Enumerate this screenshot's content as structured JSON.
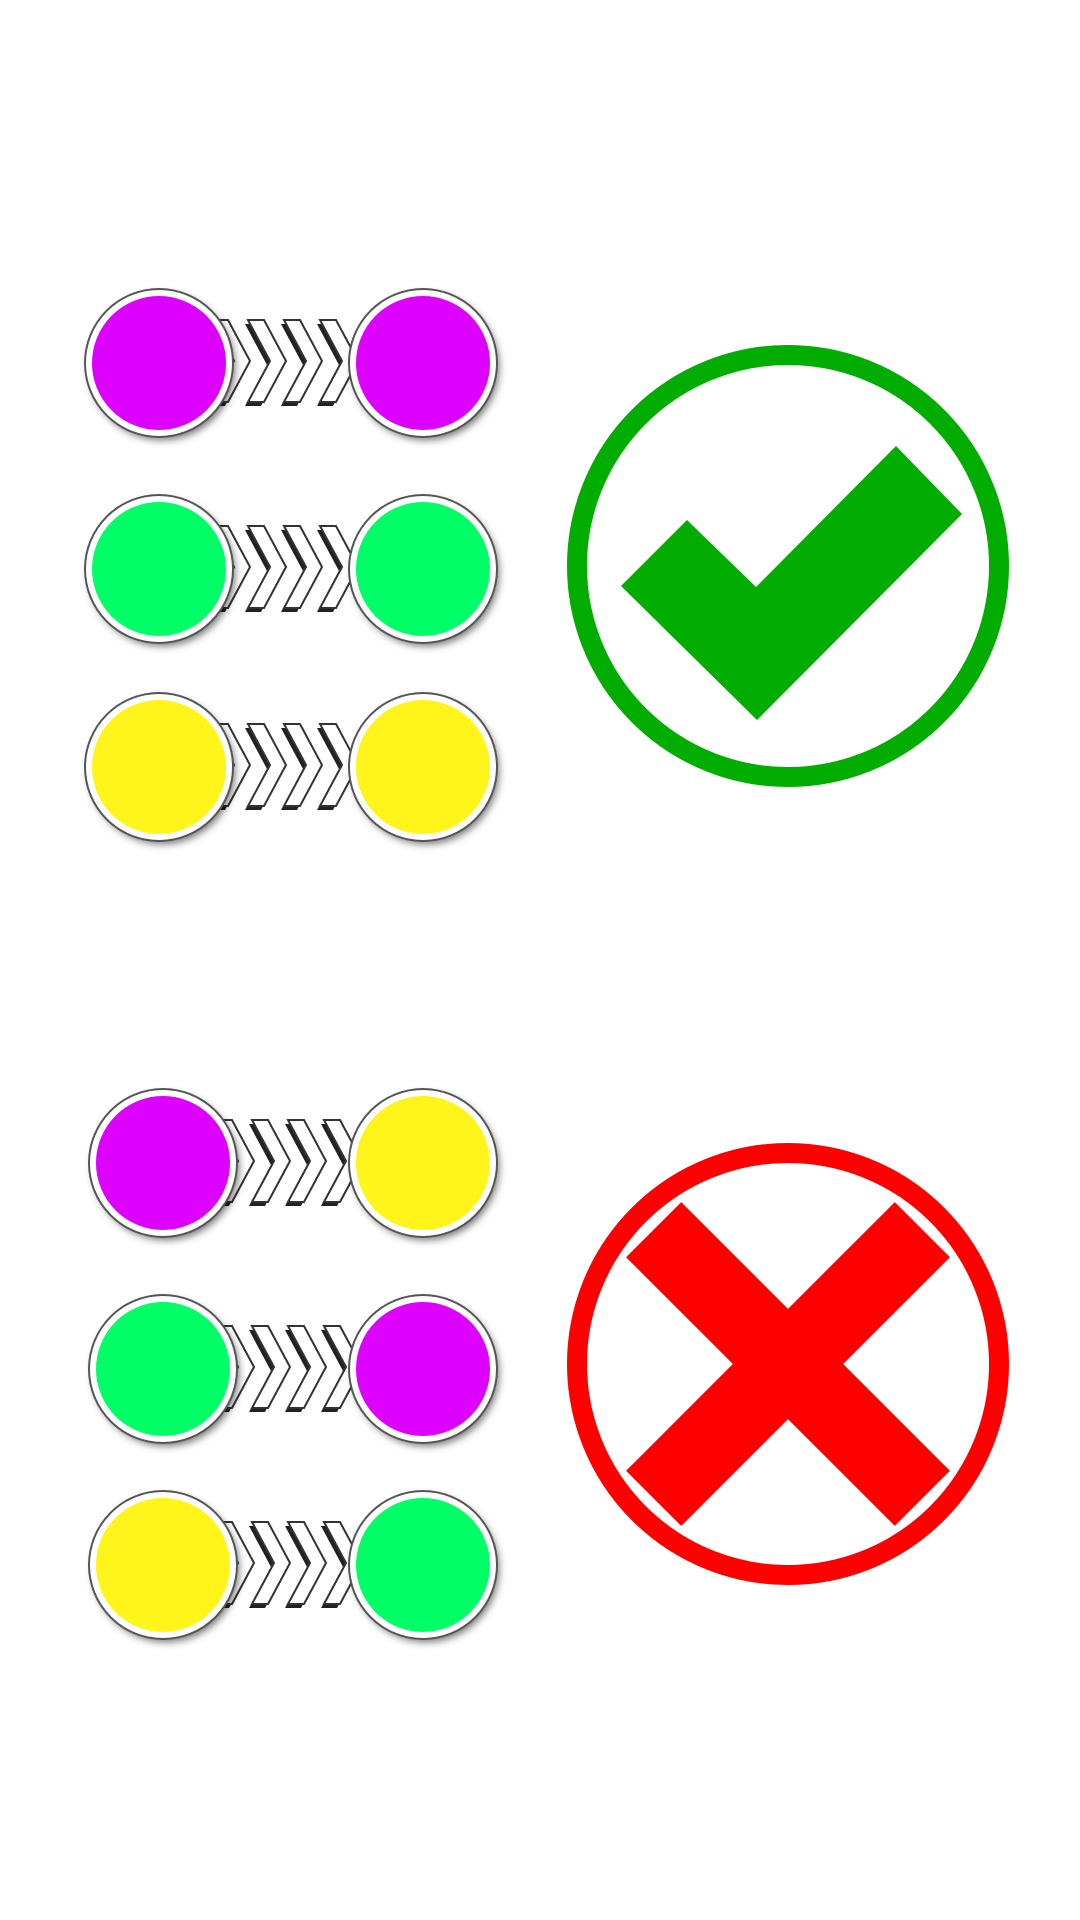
{
  "colors": {
    "magenta": "#dd00ff",
    "green": "#00ff66",
    "yellow": "#fff51a",
    "check": "#00ad00",
    "cross": "#ff0000"
  },
  "valid_group": {
    "result": "valid",
    "icon": "checkmark-icon",
    "pairs": [
      {
        "left": "magenta",
        "right": "magenta"
      },
      {
        "left": "green",
        "right": "green"
      },
      {
        "left": "yellow",
        "right": "yellow"
      }
    ]
  },
  "invalid_group": {
    "result": "invalid",
    "icon": "cross-icon",
    "pairs": [
      {
        "left": "magenta",
        "right": "yellow"
      },
      {
        "left": "green",
        "right": "magenta"
      },
      {
        "left": "yellow",
        "right": "green"
      }
    ]
  }
}
